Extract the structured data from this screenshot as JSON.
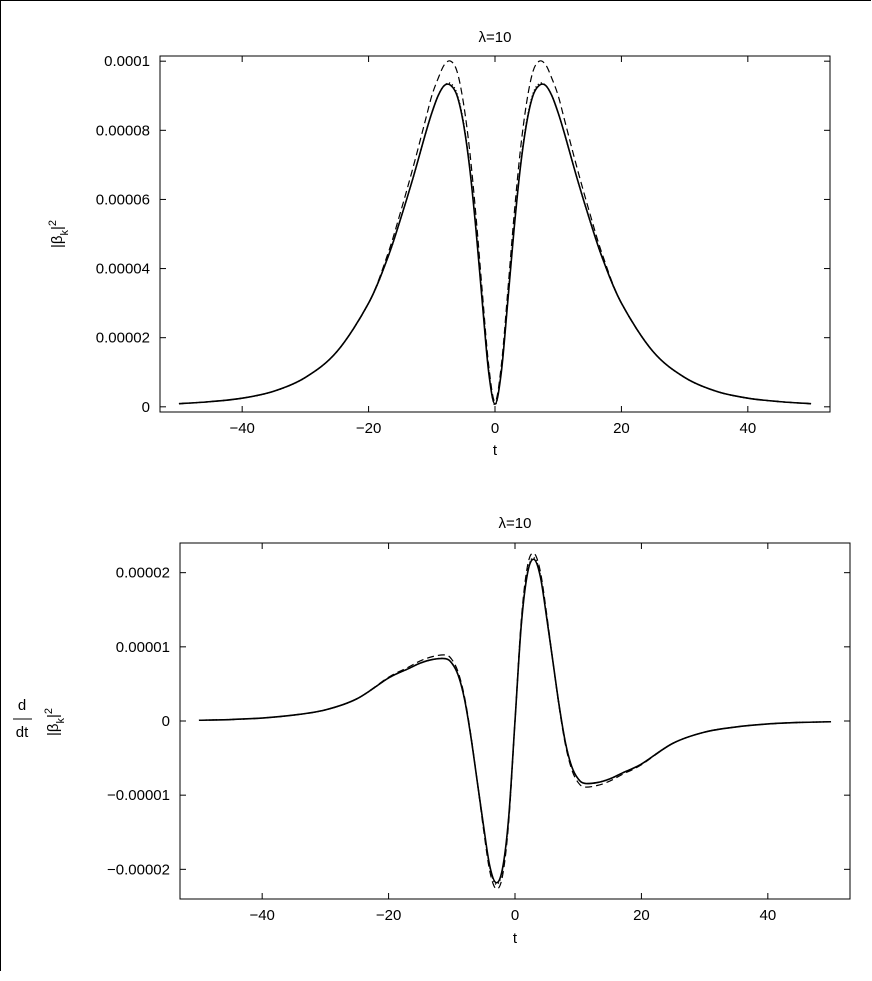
{
  "chart_data": [
    {
      "type": "line",
      "title": "λ=10",
      "xlabel": "t",
      "ylabel_main": "|β",
      "ylabel_sub": "k",
      "ylabel_tail": "|",
      "ylabel_sup": "2",
      "xlim": [
        -53,
        53
      ],
      "ylim": [
        -1.5e-06,
        0.0001015
      ],
      "grid": false,
      "x_ticks": [
        -40,
        -20,
        0,
        20,
        40
      ],
      "x_tick_labels": [
        "−40",
        "−20",
        "0",
        "20",
        "40"
      ],
      "y_ticks": [
        0,
        2e-05,
        4e-05,
        6e-05,
        8e-05,
        0.0001
      ],
      "y_tick_labels": [
        "0",
        "0.00002",
        "0.00004",
        "0.00006",
        "0.00008",
        "0.0001"
      ],
      "x": [
        -50,
        -45,
        -40,
        -35,
        -30,
        -25,
        -20,
        -17,
        -15,
        -13,
        -11,
        -10,
        -9,
        -8,
        -7,
        -6,
        -5,
        -4,
        -3,
        -2,
        -1,
        0,
        1,
        2,
        3,
        4,
        5,
        6,
        7,
        8,
        9,
        10,
        11,
        13,
        15,
        17,
        20,
        25,
        30,
        35,
        40,
        45,
        50
      ],
      "series": [
        {
          "style": "solid",
          "values": [
            9e-07,
            1.5e-06,
            2.5e-06,
            4.5e-06,
            8.5e-06,
            1.6e-05,
            3e-05,
            4.3e-05,
            5.4e-05,
            6.6e-05,
            7.9e-05,
            8.5e-05,
            9e-05,
            9.3e-05,
            9.3e-05,
            9e-05,
            8.2e-05,
            6.9e-05,
            5.1e-05,
            3e-05,
            1e-05,
            8e-07,
            1e-05,
            3e-05,
            5.1e-05,
            6.9e-05,
            8.2e-05,
            9e-05,
            9.3e-05,
            9.3e-05,
            9e-05,
            8.5e-05,
            7.9e-05,
            6.6e-05,
            5.4e-05,
            4.3e-05,
            3e-05,
            1.6e-05,
            8.5e-06,
            4.5e-06,
            2.5e-06,
            1.5e-06,
            9e-07
          ]
        },
        {
          "style": "dotted",
          "values": [
            9e-07,
            1.5e-06,
            2.5e-06,
            4.5e-06,
            8.5e-06,
            1.6e-05,
            3e-05,
            4.3e-05,
            5.4e-05,
            6.6e-05,
            7.9e-05,
            8.5e-05,
            9e-05,
            9.3e-05,
            9.35e-05,
            9.05e-05,
            8.25e-05,
            6.95e-05,
            5.15e-05,
            3.05e-05,
            1.05e-05,
            5e-07,
            1.05e-05,
            3.05e-05,
            5.15e-05,
            6.95e-05,
            8.25e-05,
            9.05e-05,
            9.35e-05,
            9.3e-05,
            9e-05,
            8.5e-05,
            7.9e-05,
            6.6e-05,
            5.4e-05,
            4.3e-05,
            3e-05,
            1.6e-05,
            8.5e-06,
            4.5e-06,
            2.5e-06,
            1.5e-06,
            9e-07
          ]
        },
        {
          "style": "dashed",
          "values": [
            9e-07,
            1.5e-06,
            2.5e-06,
            4.5e-06,
            8.5e-06,
            1.6e-05,
            3e-05,
            4.4e-05,
            5.6e-05,
            6.9e-05,
            8.3e-05,
            9e-05,
            9.5e-05,
            9.9e-05,
            0.0001,
            9.7e-05,
            8.8e-05,
            7.4e-05,
            5.5e-05,
            3.3e-05,
            1.2e-05,
            1.5e-06,
            1.2e-05,
            3.3e-05,
            5.5e-05,
            7.4e-05,
            8.8e-05,
            9.7e-05,
            0.0001,
            9.9e-05,
            9.5e-05,
            9e-05,
            8.3e-05,
            6.9e-05,
            5.6e-05,
            4.4e-05,
            3e-05,
            1.6e-05,
            8.5e-06,
            4.5e-06,
            2.5e-06,
            1.5e-06,
            9e-07
          ]
        }
      ]
    },
    {
      "type": "line",
      "title": "λ=10",
      "xlabel": "t",
      "ylabel_top": "d",
      "ylabel_bottom": "dt",
      "ylabel_main": "|β",
      "ylabel_sub": "k",
      "ylabel_tail": "|",
      "ylabel_sup": "2",
      "xlim": [
        -53,
        53
      ],
      "ylim": [
        -2.4e-05,
        2.4e-05
      ],
      "grid": false,
      "x_ticks": [
        -40,
        -20,
        0,
        20,
        40
      ],
      "x_tick_labels": [
        "−40",
        "−20",
        "0",
        "20",
        "40"
      ],
      "y_ticks": [
        -2e-05,
        -1e-05,
        0,
        1e-05,
        2e-05
      ],
      "y_tick_labels": [
        "−0.00002",
        "−0.00001",
        "0",
        "0.00001",
        "0.00002"
      ],
      "x": [
        -50,
        -45,
        -40,
        -35,
        -30,
        -25,
        -20,
        -17,
        -15,
        -13,
        -11,
        -10,
        -9,
        -8,
        -7,
        -6,
        -5,
        -4,
        -3,
        -2,
        -1,
        0,
        1,
        2,
        3,
        4,
        5,
        6,
        7,
        8,
        9,
        10,
        11,
        13,
        15,
        17,
        20,
        25,
        30,
        35,
        40,
        45,
        50
      ],
      "series": [
        {
          "style": "solid",
          "values": [
            1e-07,
            2e-07,
            4e-07,
            8e-07,
            1.5e-06,
            3e-06,
            5.8e-06,
            7e-06,
            7.8e-06,
            8.3e-06,
            8.4e-06,
            7.8e-06,
            6.2e-06,
            3e-06,
            -2e-06,
            -8e-06,
            -1.4e-05,
            -1.95e-05,
            -2.18e-05,
            -2e-05,
            -1.3e-05,
            0,
            1.3e-05,
            2e-05,
            2.18e-05,
            1.95e-05,
            1.4e-05,
            8e-06,
            2e-06,
            -3e-06,
            -6.2e-06,
            -7.8e-06,
            -8.4e-06,
            -8.3e-06,
            -7.8e-06,
            -7e-06,
            -5.8e-06,
            -3e-06,
            -1.5e-06,
            -8e-07,
            -4e-07,
            -2e-07,
            -1e-07
          ]
        },
        {
          "style": "dotted",
          "values": [
            1e-07,
            2e-07,
            4e-07,
            8e-07,
            1.5e-06,
            3e-06,
            5.8e-06,
            7e-06,
            7.8e-06,
            8.3e-06,
            8.4e-06,
            7.8e-06,
            6.2e-06,
            3e-06,
            -2e-06,
            -8e-06,
            -1.4e-05,
            -1.97e-05,
            -2.2e-05,
            -2.02e-05,
            -1.31e-05,
            0,
            1.31e-05,
            2.02e-05,
            2.2e-05,
            1.97e-05,
            1.4e-05,
            8e-06,
            2e-06,
            -3e-06,
            -6.2e-06,
            -7.8e-06,
            -8.4e-06,
            -8.3e-06,
            -7.8e-06,
            -7e-06,
            -5.8e-06,
            -3e-06,
            -1.5e-06,
            -8e-07,
            -4e-07,
            -2e-07,
            -1e-07
          ]
        },
        {
          "style": "dashed",
          "values": [
            1e-07,
            2e-07,
            4e-07,
            8e-07,
            1.5e-06,
            3e-06,
            5.9e-06,
            7.2e-06,
            8.1e-06,
            8.7e-06,
            8.9e-06,
            8.3e-06,
            6.6e-06,
            3.3e-06,
            -1.8e-06,
            -8e-06,
            -1.45e-05,
            -2.02e-05,
            -2.26e-05,
            -2.1e-05,
            -1.37e-05,
            0,
            1.37e-05,
            2.1e-05,
            2.26e-05,
            2.02e-05,
            1.45e-05,
            8e-06,
            1.8e-06,
            -3.3e-06,
            -6.6e-06,
            -8.3e-06,
            -8.9e-06,
            -8.7e-06,
            -8.1e-06,
            -7.2e-06,
            -5.9e-06,
            -3e-06,
            -1.5e-06,
            -8e-07,
            -4e-07,
            -2e-07,
            -1e-07
          ]
        }
      ]
    }
  ]
}
